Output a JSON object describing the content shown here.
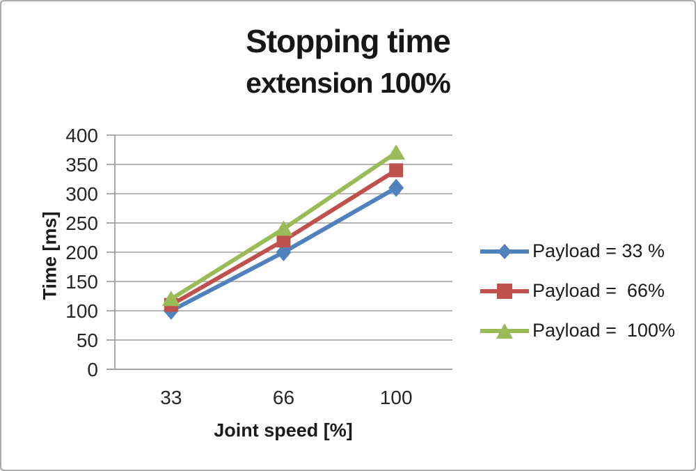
{
  "chart_data": {
    "type": "line",
    "title": "Stopping time",
    "subtitle": "extension 100%",
    "xlabel": "Joint speed [%]",
    "ylabel": "Time [ms]",
    "categories": [
      "33",
      "66",
      "100"
    ],
    "series": [
      {
        "name": "Payload = 33 %",
        "color": "#4F81BD",
        "marker": "diamond",
        "values": [
          100,
          200,
          310
        ]
      },
      {
        "name": "Payload =  66%",
        "color": "#C0504D",
        "marker": "square",
        "values": [
          110,
          220,
          340
        ]
      },
      {
        "name": "Payload =  100%",
        "color": "#9BBB59",
        "marker": "triangle",
        "values": [
          120,
          240,
          370
        ]
      }
    ],
    "ylim": [
      0,
      400
    ],
    "ytick_step": 50,
    "yticks": [
      0,
      50,
      100,
      150,
      200,
      250,
      300,
      350,
      400
    ],
    "grid": true,
    "grid_color": "#9e9e9e",
    "tick_label_color": "#262626",
    "legend_position": "right"
  }
}
